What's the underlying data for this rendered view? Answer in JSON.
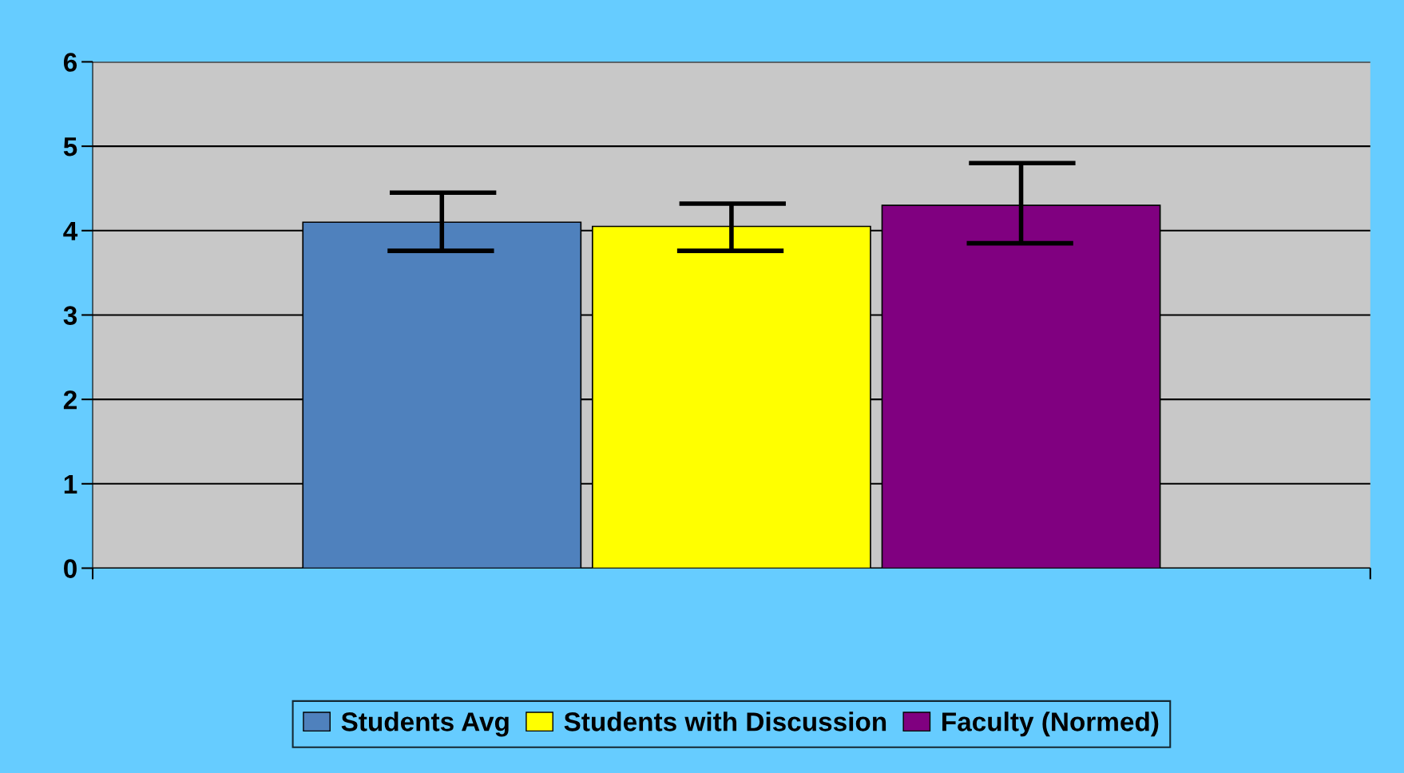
{
  "chart_data": {
    "type": "bar",
    "categories": [
      null
    ],
    "series": [
      {
        "name": "Students Avg",
        "color": "#4f81bd",
        "values": [
          4.1
        ],
        "errors": [
          [
            3.76,
            4.45
          ]
        ]
      },
      {
        "name": "Students with Discussion",
        "color": "#ffff00",
        "values": [
          4.05
        ],
        "errors": [
          [
            3.76,
            4.32
          ]
        ]
      },
      {
        "name": "Faculty (Normed)",
        "color": "#800080",
        "values": [
          4.3
        ],
        "errors": [
          [
            3.85,
            4.8
          ]
        ]
      }
    ],
    "ylim": [
      0,
      6
    ],
    "yticks": [
      0,
      1,
      2,
      3,
      4,
      5,
      6
    ],
    "grid": "y",
    "legend": "bottom"
  }
}
